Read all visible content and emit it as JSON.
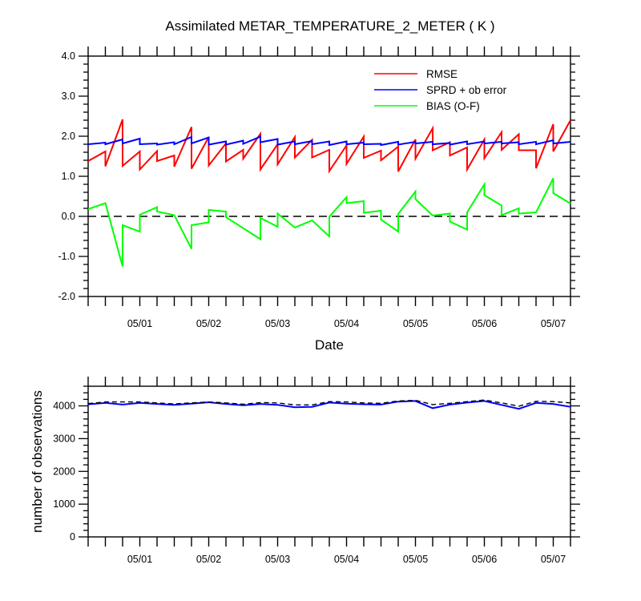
{
  "chart_data": [
    {
      "type": "line",
      "title": "Assimilated METAR_TEMPERATURE_2_METER ( K )",
      "xlabel": "Date",
      "ylabel": "",
      "ylim": [
        -2.0,
        4.0
      ],
      "yticks": [
        "4.0",
        "3.0",
        "2.0",
        "1.0",
        "0.0",
        "-1.0",
        "-2.0"
      ],
      "xticks": [
        "05/01",
        "05/02",
        "05/03",
        "05/04",
        "05/05",
        "05/06",
        "05/07"
      ],
      "xlim_days": [
        0.25,
        7.25
      ],
      "reference_line": 0.0,
      "legend_position": "top-right",
      "series": [
        {
          "name": "RMSE",
          "color": "#ff0000",
          "points": [
            [
              0.25,
              1.38
            ],
            [
              0.5,
              1.62
            ],
            [
              0.5,
              1.25
            ],
            [
              0.75,
              2.42
            ],
            [
              0.75,
              1.26
            ],
            [
              1.0,
              1.62
            ],
            [
              1.0,
              1.17
            ],
            [
              1.25,
              1.63
            ],
            [
              1.25,
              1.38
            ],
            [
              1.5,
              1.52
            ],
            [
              1.5,
              1.24
            ],
            [
              1.75,
              2.23
            ],
            [
              1.75,
              1.19
            ],
            [
              2.0,
              1.98
            ],
            [
              2.0,
              1.27
            ],
            [
              2.25,
              1.82
            ],
            [
              2.25,
              1.37
            ],
            [
              2.5,
              1.66
            ],
            [
              2.5,
              1.44
            ],
            [
              2.75,
              2.06
            ],
            [
              2.75,
              1.17
            ],
            [
              3.0,
              1.8
            ],
            [
              3.0,
              1.3
            ],
            [
              3.25,
              1.98
            ],
            [
              3.25,
              1.47
            ],
            [
              3.5,
              1.91
            ],
            [
              3.5,
              1.47
            ],
            [
              3.75,
              1.66
            ],
            [
              3.75,
              1.13
            ],
            [
              4.0,
              1.77
            ],
            [
              4.0,
              1.31
            ],
            [
              4.25,
              1.99
            ],
            [
              4.25,
              1.46
            ],
            [
              4.5,
              1.64
            ],
            [
              4.5,
              1.4
            ],
            [
              4.75,
              1.74
            ],
            [
              4.75,
              1.12
            ],
            [
              5.0,
              1.92
            ],
            [
              5.0,
              1.44
            ],
            [
              5.25,
              2.2
            ],
            [
              5.25,
              1.65
            ],
            [
              5.5,
              1.85
            ],
            [
              5.5,
              1.52
            ],
            [
              5.75,
              1.72
            ],
            [
              5.75,
              1.17
            ],
            [
              6.0,
              1.92
            ],
            [
              6.0,
              1.45
            ],
            [
              6.25,
              2.1
            ],
            [
              6.25,
              1.66
            ],
            [
              6.5,
              2.05
            ],
            [
              6.5,
              1.65
            ],
            [
              6.75,
              1.65
            ],
            [
              6.75,
              1.2
            ],
            [
              7.0,
              2.3
            ],
            [
              7.0,
              1.62
            ],
            [
              7.25,
              2.4
            ]
          ]
        },
        {
          "name": "SPRD + ob error",
          "color": "#0000ff",
          "points": [
            [
              0.25,
              1.8
            ],
            [
              0.5,
              1.84
            ],
            [
              0.5,
              1.8
            ],
            [
              0.75,
              1.92
            ],
            [
              0.75,
              1.82
            ],
            [
              1.0,
              1.94
            ],
            [
              1.0,
              1.8
            ],
            [
              1.25,
              1.82
            ],
            [
              1.25,
              1.79
            ],
            [
              1.5,
              1.85
            ],
            [
              1.5,
              1.8
            ],
            [
              1.75,
              1.98
            ],
            [
              1.75,
              1.82
            ],
            [
              2.0,
              1.97
            ],
            [
              2.0,
              1.79
            ],
            [
              2.25,
              1.87
            ],
            [
              2.25,
              1.79
            ],
            [
              2.5,
              1.89
            ],
            [
              2.5,
              1.81
            ],
            [
              2.75,
              1.99
            ],
            [
              2.75,
              1.85
            ],
            [
              3.0,
              1.93
            ],
            [
              3.0,
              1.79
            ],
            [
              3.25,
              1.87
            ],
            [
              3.25,
              1.8
            ],
            [
              3.5,
              1.88
            ],
            [
              3.5,
              1.8
            ],
            [
              3.75,
              1.87
            ],
            [
              3.75,
              1.78
            ],
            [
              4.0,
              1.87
            ],
            [
              4.0,
              1.8
            ],
            [
              4.25,
              1.84
            ],
            [
              4.25,
              1.8
            ],
            [
              4.5,
              1.81
            ],
            [
              4.5,
              1.78
            ],
            [
              4.75,
              1.86
            ],
            [
              4.75,
              1.79
            ],
            [
              5.0,
              1.86
            ],
            [
              5.0,
              1.82
            ],
            [
              5.25,
              1.86
            ],
            [
              5.25,
              1.8
            ],
            [
              5.5,
              1.83
            ],
            [
              5.5,
              1.79
            ],
            [
              5.75,
              1.87
            ],
            [
              5.75,
              1.8
            ],
            [
              6.0,
              1.87
            ],
            [
              6.0,
              1.82
            ],
            [
              6.25,
              1.86
            ],
            [
              6.25,
              1.82
            ],
            [
              6.5,
              1.85
            ],
            [
              6.5,
              1.8
            ],
            [
              6.75,
              1.86
            ],
            [
              6.75,
              1.8
            ],
            [
              7.0,
              1.9
            ],
            [
              7.0,
              1.82
            ],
            [
              7.25,
              1.86
            ]
          ]
        },
        {
          "name": "BIAS (O-F)",
          "color": "#00ff00",
          "points": [
            [
              0.25,
              0.18
            ],
            [
              0.5,
              0.33
            ],
            [
              0.75,
              -1.25
            ],
            [
              0.75,
              -0.22
            ],
            [
              1.0,
              -0.38
            ],
            [
              1.0,
              0.04
            ],
            [
              1.25,
              0.23
            ],
            [
              1.25,
              0.12
            ],
            [
              1.5,
              0.03
            ],
            [
              1.75,
              -0.81
            ],
            [
              1.75,
              -0.22
            ],
            [
              2.0,
              -0.15
            ],
            [
              2.0,
              0.16
            ],
            [
              2.25,
              0.12
            ],
            [
              2.25,
              -0.02
            ],
            [
              2.75,
              -0.57
            ],
            [
              2.75,
              -0.04
            ],
            [
              3.0,
              -0.26
            ],
            [
              3.0,
              0.07
            ],
            [
              3.25,
              -0.28
            ],
            [
              3.5,
              -0.1
            ],
            [
              3.75,
              -0.5
            ],
            [
              3.75,
              -0.01
            ],
            [
              4.0,
              0.48
            ],
            [
              4.0,
              0.33
            ],
            [
              4.25,
              0.38
            ],
            [
              4.25,
              0.09
            ],
            [
              4.5,
              0.14
            ],
            [
              4.5,
              -0.08
            ],
            [
              4.75,
              -0.38
            ],
            [
              4.75,
              0.06
            ],
            [
              5.0,
              0.62
            ],
            [
              5.0,
              0.43
            ],
            [
              5.25,
              0.02
            ],
            [
              5.5,
              0.07
            ],
            [
              5.5,
              -0.13
            ],
            [
              5.75,
              -0.33
            ],
            [
              5.75,
              0.1
            ],
            [
              6.0,
              0.8
            ],
            [
              6.0,
              0.53
            ],
            [
              6.25,
              0.27
            ],
            [
              6.25,
              0.03
            ],
            [
              6.5,
              0.2
            ],
            [
              6.5,
              0.07
            ],
            [
              6.75,
              0.1
            ],
            [
              7.0,
              0.95
            ],
            [
              7.0,
              0.58
            ],
            [
              7.25,
              0.32
            ]
          ]
        }
      ]
    },
    {
      "type": "line",
      "title": "",
      "xlabel": "",
      "ylabel": "number of observations",
      "ylim": [
        0,
        4600
      ],
      "yticks": [
        "4000",
        "3000",
        "2000",
        "1000",
        "0"
      ],
      "xticks": [
        "05/01",
        "05/02",
        "05/03",
        "05/04",
        "05/05",
        "05/06",
        "05/07"
      ],
      "xlim_days": [
        0.25,
        7.25
      ],
      "series": [
        {
          "color": "#0000ff",
          "style": "solid",
          "points": [
            [
              0.25,
              4050
            ],
            [
              0.5,
              4090
            ],
            [
              0.75,
              4040
            ],
            [
              1.0,
              4090
            ],
            [
              1.25,
              4060
            ],
            [
              1.5,
              4030
            ],
            [
              1.75,
              4070
            ],
            [
              2.0,
              4110
            ],
            [
              2.25,
              4060
            ],
            [
              2.5,
              4020
            ],
            [
              2.75,
              4060
            ],
            [
              3.0,
              4030
            ],
            [
              3.25,
              3960
            ],
            [
              3.5,
              3970
            ],
            [
              3.75,
              4100
            ],
            [
              4.0,
              4070
            ],
            [
              4.25,
              4050
            ],
            [
              4.5,
              4040
            ],
            [
              4.75,
              4130
            ],
            [
              5.0,
              4150
            ],
            [
              5.25,
              3930
            ],
            [
              5.5,
              4040
            ],
            [
              5.75,
              4100
            ],
            [
              6.0,
              4150
            ],
            [
              6.25,
              4030
            ],
            [
              6.5,
              3910
            ],
            [
              6.75,
              4090
            ],
            [
              7.0,
              4060
            ],
            [
              7.25,
              3970
            ]
          ]
        },
        {
          "color": "#000000",
          "style": "dashed",
          "points": [
            [
              0.25,
              4070
            ],
            [
              0.5,
              4120
            ],
            [
              0.75,
              4120
            ],
            [
              1.0,
              4120
            ],
            [
              1.25,
              4090
            ],
            [
              1.5,
              4060
            ],
            [
              1.75,
              4090
            ],
            [
              2.0,
              4120
            ],
            [
              2.25,
              4090
            ],
            [
              2.5,
              4050
            ],
            [
              2.75,
              4100
            ],
            [
              3.0,
              4090
            ],
            [
              3.25,
              4030
            ],
            [
              3.5,
              4030
            ],
            [
              3.75,
              4130
            ],
            [
              4.0,
              4120
            ],
            [
              4.25,
              4090
            ],
            [
              4.5,
              4080
            ],
            [
              4.75,
              4150
            ],
            [
              5.0,
              4170
            ],
            [
              5.25,
              4040
            ],
            [
              5.5,
              4080
            ],
            [
              5.75,
              4130
            ],
            [
              6.0,
              4180
            ],
            [
              6.25,
              4090
            ],
            [
              6.5,
              3990
            ],
            [
              6.75,
              4140
            ],
            [
              7.0,
              4130
            ],
            [
              7.25,
              4090
            ]
          ]
        }
      ]
    }
  ]
}
